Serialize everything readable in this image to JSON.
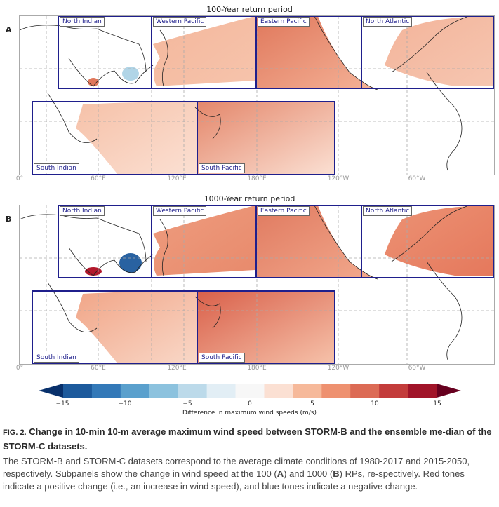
{
  "figure": {
    "panels": [
      {
        "letter": "A",
        "title": "100-Year return period",
        "regions": [
          "North Indian",
          "Western Pacific",
          "Eastern Pacific",
          "North Atlantic",
          "South Indian",
          "South Pacific"
        ],
        "lon_ticks": [
          "0°",
          "60°E",
          "120°E",
          "180°E",
          "120°W",
          "60°W"
        ]
      },
      {
        "letter": "B",
        "title": "1000-Year return period",
        "regions": [
          "North Indian",
          "Western Pacific",
          "Eastern Pacific",
          "North Atlantic",
          "South Indian",
          "South Pacific"
        ],
        "lon_ticks": [
          "0°",
          "60°E",
          "120°E",
          "180°E",
          "120°W",
          "60°W"
        ]
      }
    ],
    "colorbar": {
      "ticks": [
        "−15",
        "−10",
        "−5",
        "0",
        "5",
        "10",
        "15"
      ],
      "label": "Difference in maximum wind speeds (m/s)",
      "colors": [
        "#08306b",
        "#1d5a9c",
        "#3379b8",
        "#5aa0cd",
        "#8cc2de",
        "#bcdaea",
        "#e2eef5",
        "#f7f7f7",
        "#fbe0d3",
        "#f6b99a",
        "#ee9170",
        "#dc6b55",
        "#c33c3b",
        "#a11429",
        "#67001f"
      ]
    },
    "region_box_color": "#1f1f8c"
  },
  "caption": {
    "fig_label": "FIG. 2.",
    "title": "Change in 10-min 10-m average maximum wind speed between STORM-B and the ensemble me-dian of the STORM-C datasets.",
    "body_1": "The STORM-B and STORM-C datasets correspond to the average climate conditions of 1980-2017 and 2015-2050, respectively. Subpanels show the change in wind speed at the 100 (",
    "bold_a": "A",
    "body_2": ") and 1000 (",
    "bold_b": "B",
    "body_3": ") RPs, re-spectively. Red tones indicate a positive change (i.e., an increase in wind speed), and blue tones indicate a negative change."
  }
}
